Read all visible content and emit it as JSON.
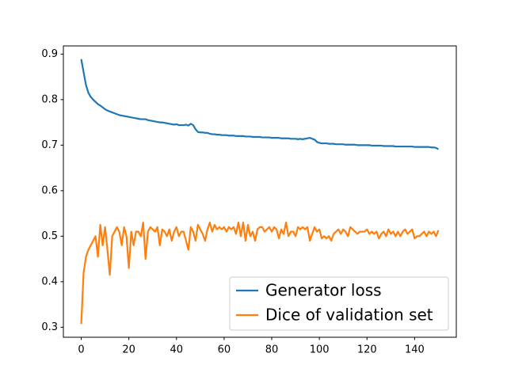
{
  "chart_data": {
    "type": "line",
    "x": [
      0,
      1,
      2,
      3,
      4,
      5,
      6,
      7,
      8,
      9,
      10,
      11,
      12,
      13,
      14,
      15,
      16,
      17,
      18,
      19,
      20,
      21,
      22,
      23,
      24,
      25,
      26,
      27,
      28,
      29,
      30,
      31,
      32,
      33,
      34,
      35,
      36,
      37,
      38,
      39,
      40,
      41,
      42,
      43,
      44,
      45,
      46,
      47,
      48,
      49,
      50,
      51,
      52,
      53,
      54,
      55,
      56,
      57,
      58,
      59,
      60,
      61,
      62,
      63,
      64,
      65,
      66,
      67,
      68,
      69,
      70,
      71,
      72,
      73,
      74,
      75,
      76,
      77,
      78,
      79,
      80,
      81,
      82,
      83,
      84,
      85,
      86,
      87,
      88,
      89,
      90,
      91,
      92,
      93,
      94,
      95,
      96,
      97,
      98,
      99,
      100,
      101,
      102,
      103,
      104,
      105,
      106,
      107,
      108,
      109,
      110,
      111,
      112,
      113,
      114,
      115,
      116,
      117,
      118,
      119,
      120,
      121,
      122,
      123,
      124,
      125,
      126,
      127,
      128,
      129,
      130,
      131,
      132,
      133,
      134,
      135,
      136,
      137,
      138,
      139,
      140,
      141,
      142,
      143,
      144,
      145,
      146,
      147,
      148,
      149,
      150
    ],
    "series": [
      {
        "name": "Generator loss",
        "color": "#1f77b4",
        "values": [
          0.889,
          0.86,
          0.832,
          0.815,
          0.806,
          0.8,
          0.795,
          0.79,
          0.787,
          0.783,
          0.779,
          0.776,
          0.774,
          0.772,
          0.77,
          0.768,
          0.766,
          0.765,
          0.764,
          0.763,
          0.762,
          0.761,
          0.76,
          0.759,
          0.758,
          0.757,
          0.757,
          0.757,
          0.755,
          0.754,
          0.753,
          0.752,
          0.751,
          0.75,
          0.75,
          0.749,
          0.748,
          0.747,
          0.746,
          0.745,
          0.746,
          0.744,
          0.744,
          0.744,
          0.745,
          0.743,
          0.747,
          0.744,
          0.735,
          0.729,
          0.728,
          0.728,
          0.727,
          0.727,
          0.725,
          0.724,
          0.724,
          0.723,
          0.723,
          0.722,
          0.722,
          0.722,
          0.721,
          0.721,
          0.721,
          0.72,
          0.72,
          0.72,
          0.72,
          0.719,
          0.719,
          0.719,
          0.718,
          0.718,
          0.718,
          0.718,
          0.717,
          0.717,
          0.717,
          0.717,
          0.716,
          0.716,
          0.716,
          0.716,
          0.715,
          0.715,
          0.715,
          0.715,
          0.714,
          0.714,
          0.714,
          0.713,
          0.714,
          0.713,
          0.714,
          0.715,
          0.716,
          0.714,
          0.712,
          0.707,
          0.705,
          0.704,
          0.704,
          0.704,
          0.703,
          0.703,
          0.703,
          0.702,
          0.702,
          0.702,
          0.702,
          0.701,
          0.701,
          0.701,
          0.701,
          0.701,
          0.7,
          0.7,
          0.7,
          0.7,
          0.7,
          0.7,
          0.699,
          0.699,
          0.699,
          0.699,
          0.699,
          0.698,
          0.698,
          0.698,
          0.698,
          0.698,
          0.697,
          0.697,
          0.697,
          0.697,
          0.697,
          0.697,
          0.697,
          0.697,
          0.696,
          0.696,
          0.696,
          0.696,
          0.696,
          0.696,
          0.696,
          0.695,
          0.695,
          0.694,
          0.691
        ]
      },
      {
        "name": "Dice of validation set",
        "color": "#ff7f0e",
        "values": [
          0.307,
          0.42,
          0.455,
          0.47,
          0.48,
          0.49,
          0.5,
          0.455,
          0.525,
          0.48,
          0.52,
          0.47,
          0.415,
          0.5,
          0.51,
          0.52,
          0.51,
          0.48,
          0.52,
          0.5,
          0.43,
          0.51,
          0.48,
          0.51,
          0.51,
          0.5,
          0.53,
          0.45,
          0.51,
          0.52,
          0.515,
          0.51,
          0.52,
          0.48,
          0.515,
          0.51,
          0.5,
          0.515,
          0.49,
          0.51,
          0.52,
          0.5,
          0.51,
          0.51,
          0.49,
          0.47,
          0.52,
          0.51,
          0.49,
          0.525,
          0.515,
          0.505,
          0.49,
          0.515,
          0.53,
          0.51,
          0.525,
          0.515,
          0.52,
          0.515,
          0.52,
          0.51,
          0.52,
          0.515,
          0.52,
          0.505,
          0.53,
          0.5,
          0.53,
          0.49,
          0.525,
          0.5,
          0.51,
          0.49,
          0.515,
          0.52,
          0.52,
          0.51,
          0.515,
          0.52,
          0.51,
          0.52,
          0.515,
          0.495,
          0.515,
          0.505,
          0.53,
          0.5,
          0.51,
          0.51,
          0.5,
          0.52,
          0.515,
          0.52,
          0.515,
          0.52,
          0.49,
          0.505,
          0.52,
          0.51,
          0.515,
          0.495,
          0.5,
          0.495,
          0.5,
          0.49,
          0.505,
          0.51,
          0.515,
          0.505,
          0.515,
          0.51,
          0.5,
          0.52,
          0.515,
          0.51,
          0.505,
          0.51,
          0.51,
          0.51,
          0.515,
          0.505,
          0.51,
          0.505,
          0.51,
          0.495,
          0.505,
          0.51,
          0.5,
          0.515,
          0.505,
          0.51,
          0.5,
          0.51,
          0.5,
          0.51,
          0.515,
          0.505,
          0.51,
          0.515,
          0.495,
          0.5,
          0.5,
          0.505,
          0.51,
          0.5,
          0.51,
          0.505,
          0.51,
          0.5,
          0.513
        ]
      }
    ],
    "xlim": [
      -7.5,
      157.5
    ],
    "xticks": [
      0,
      20,
      40,
      60,
      80,
      100,
      120,
      140
    ],
    "ylim": [
      0.278,
      0.918
    ],
    "yticks": [
      0.3,
      0.4,
      0.5,
      0.6,
      0.7,
      0.8,
      0.9
    ],
    "grid": false,
    "legend": "lower right"
  }
}
